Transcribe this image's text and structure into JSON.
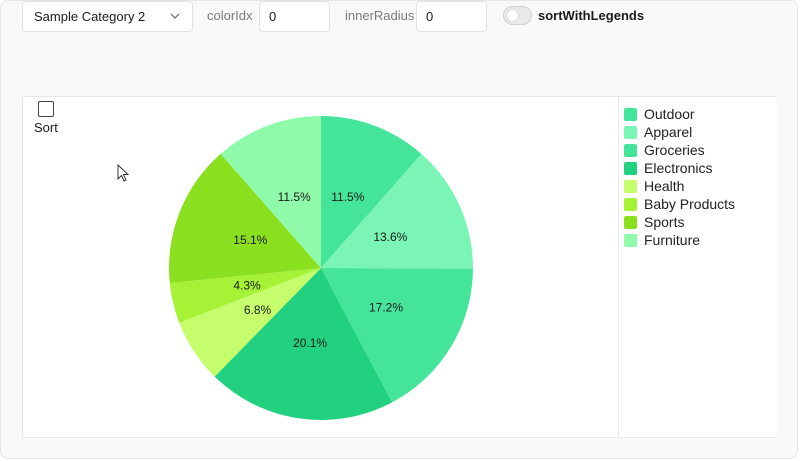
{
  "controls": {
    "category_select": "Sample Category 2",
    "color_idx_label": "colorIdx",
    "color_idx_value": "0",
    "inner_radius_label": "innerRadius",
    "inner_radius_value": "0",
    "sort_with_legends_label": "sortWithLegends",
    "sort_label": "Sort",
    "icons": [
      "chevron-down-icon",
      "cursor-icon"
    ]
  },
  "chart_data": {
    "type": "pie",
    "inner_radius": 0,
    "sorted": false,
    "slices": [
      {
        "label": "Outdoor",
        "value": 11.5,
        "display": "11.5%",
        "color": "#44e59b"
      },
      {
        "label": "Apparel",
        "value": 13.6,
        "display": "13.6%",
        "color": "#7af5b6"
      },
      {
        "label": "Groceries",
        "value": 17.2,
        "display": "17.2%",
        "color": "#44e59b"
      },
      {
        "label": "Electronics",
        "value": 20.1,
        "display": "20.1%",
        "color": "#22d17f"
      },
      {
        "label": "Health",
        "value": 6.8,
        "display": "6.8%",
        "color": "#c6fd6c"
      },
      {
        "label": "Baby Products",
        "value": 4.3,
        "display": "4.3%",
        "color": "#a5f237"
      },
      {
        "label": "Sports",
        "value": 15.1,
        "display": "15.1%",
        "color": "#8ae01e"
      },
      {
        "label": "Furniture",
        "value": 11.5,
        "display": "11.5%",
        "color": "#8ffbaa"
      }
    ],
    "legend_position": "right"
  }
}
